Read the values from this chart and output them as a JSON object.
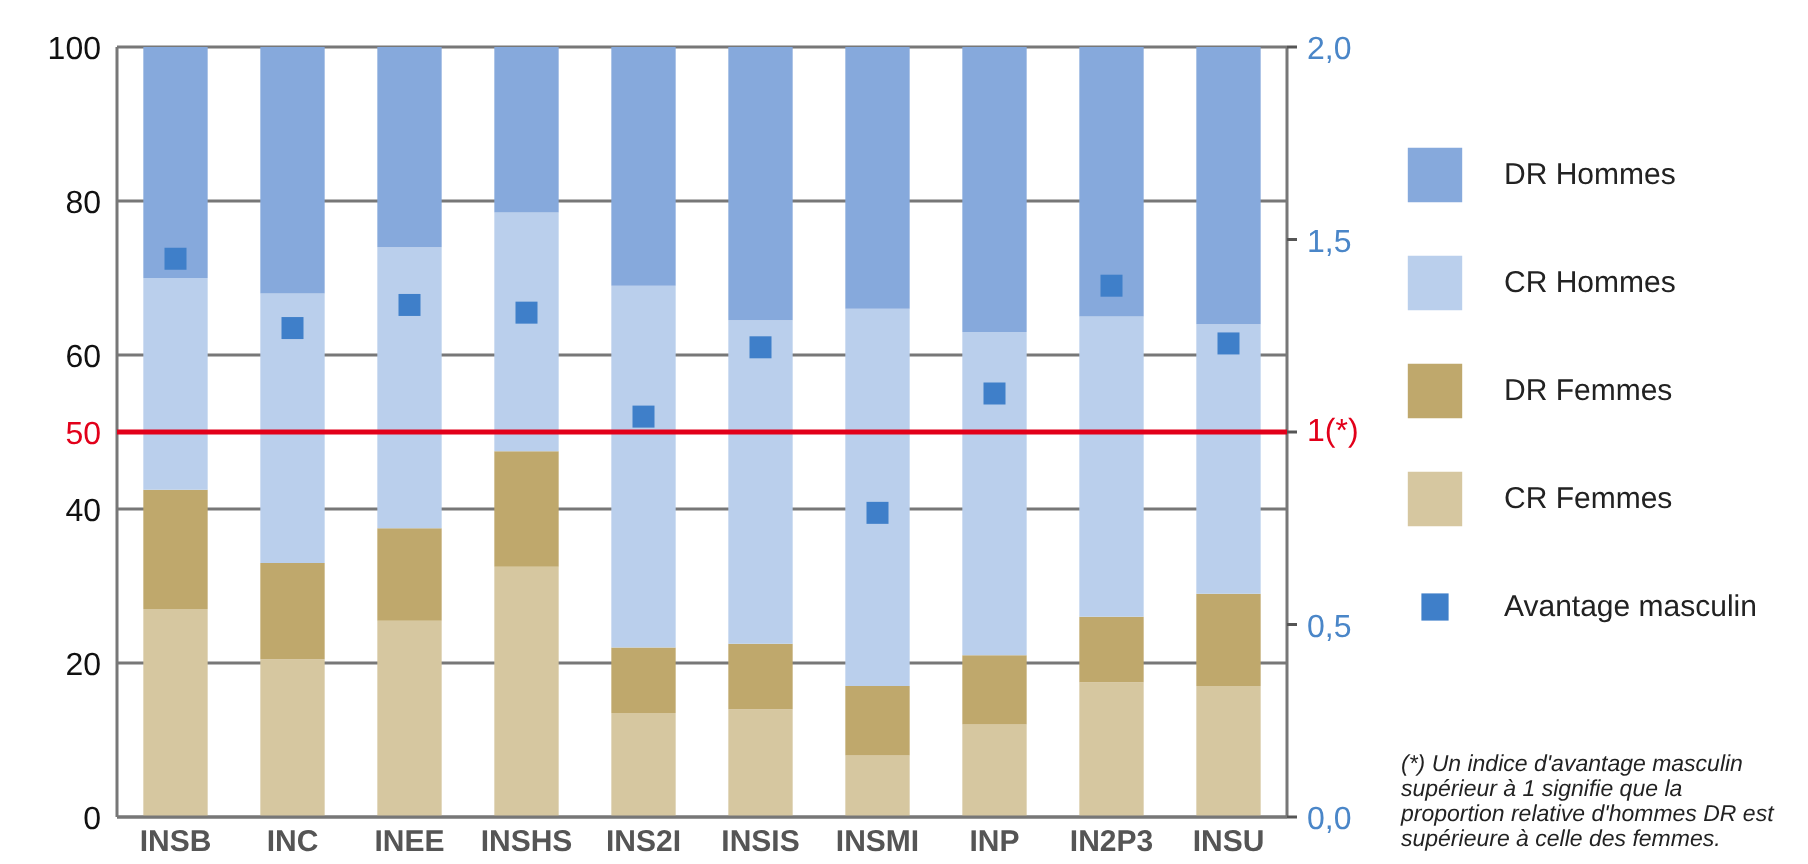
{
  "chart_data": {
    "type": "bar",
    "stacked": true,
    "categories": [
      "INSB",
      "INC",
      "INEE",
      "INSHS",
      "INS2I",
      "INSIS",
      "INSMI",
      "INP",
      "IN2P3",
      "INSU"
    ],
    "series": [
      {
        "name": "CR Femmes",
        "color": "#d6c7a0",
        "values": [
          27,
          20.5,
          25.5,
          32.5,
          13.5,
          14,
          8,
          12,
          17.5,
          17
        ]
      },
      {
        "name": "DR Femmes",
        "color": "#bfa86c",
        "values": [
          15.5,
          12.5,
          12,
          15,
          8.5,
          8.5,
          9,
          9,
          8.5,
          12
        ]
      },
      {
        "name": "CR Hommes",
        "color": "#bacfec",
        "values": [
          27.5,
          35,
          36.5,
          31,
          47,
          42,
          49,
          42,
          39,
          35
        ]
      },
      {
        "name": "DR Hommes",
        "color": "#86a9dc",
        "values": [
          30,
          32,
          26,
          21.5,
          31,
          35.5,
          34,
          37,
          35,
          36
        ]
      },
      {
        "name": "Avantage masculin",
        "type": "scatter",
        "axis": "y2",
        "marker": "square",
        "color": "#3f7fc9",
        "values": [
          1.45,
          1.27,
          1.33,
          1.31,
          1.04,
          1.22,
          0.79,
          1.1,
          1.38,
          1.23
        ]
      }
    ],
    "ylim": [
      0,
      100
    ],
    "yticks": [
      0,
      20,
      40,
      60,
      80,
      100
    ],
    "y2lim": [
      0,
      2
    ],
    "y2ticks": [
      {
        "value": 0,
        "label": "0,0"
      },
      {
        "value": 0.5,
        "label": "0,5"
      },
      {
        "value": 1,
        "label": "1(*)"
      },
      {
        "value": 1.5,
        "label": "1,5"
      },
      {
        "value": 2,
        "label": "2,0"
      }
    ],
    "ref_lines": [
      {
        "axis": "y",
        "value": 50,
        "label": "50",
        "color": "#e2001a"
      }
    ],
    "grid": "y",
    "legend": "right",
    "annotations": [
      "(*) Un indice d'avantage masculin supérieur à 1 signifie que la proportion relative d'hommes DR est supérieure à celle des femmes."
    ]
  }
}
